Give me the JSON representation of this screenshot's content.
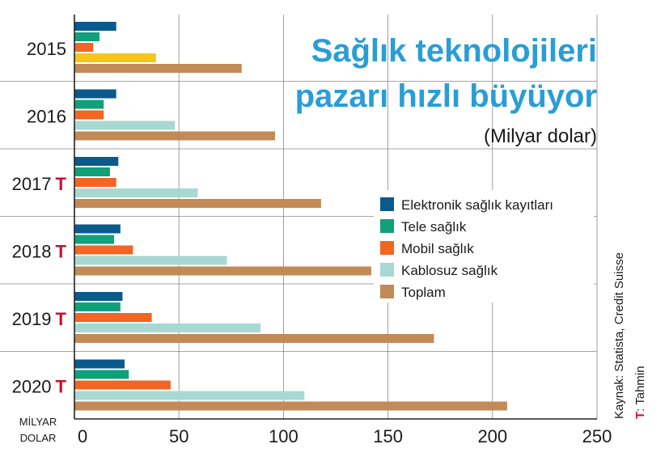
{
  "chart_data": {
    "type": "bar",
    "orientation": "horizontal",
    "title_lines": [
      "Sağlık teknolojileri",
      "pazarı hızlı büyüyor"
    ],
    "subtitle": "(Milyar dolar)",
    "unit_label_lines": [
      "MİLYAR",
      "DOLAR"
    ],
    "categories": [
      "2015",
      "2016",
      "2017",
      "2018",
      "2019",
      "2020"
    ],
    "category_markers": [
      "",
      "",
      "T",
      "T",
      "T",
      "T"
    ],
    "xlim": [
      0,
      250
    ],
    "x_ticks": [
      0,
      50,
      100,
      150,
      200,
      250
    ],
    "grid": true,
    "legend_position": "right-middle",
    "series": [
      {
        "name": "Elektronik sağlık kayıtları",
        "color": "#0a5a8c",
        "values": [
          20,
          20,
          21,
          22,
          23,
          24
        ]
      },
      {
        "name": "Tele sağlık",
        "color": "#10a07a",
        "values": [
          12,
          14,
          17,
          19,
          22,
          26
        ]
      },
      {
        "name": "Mobil sağlık",
        "color": "#f26522",
        "values": [
          9,
          14,
          20,
          28,
          37,
          46
        ]
      },
      {
        "name": "Kablosuz sağlık",
        "color": "#a8d8d2",
        "values": [
          null,
          48,
          59,
          73,
          89,
          110
        ]
      },
      {
        "name": "Toplam",
        "color": "#c28a57",
        "values": [
          80,
          96,
          118,
          142,
          172,
          207
        ]
      }
    ],
    "extra_bars": [
      {
        "category": "2015",
        "slot": 3,
        "color": "#f5c518",
        "value": 39
      }
    ],
    "source": "Kaynak: Statista, Credit Suisse",
    "note_marker": "T",
    "note_text": ": Tahmin"
  }
}
